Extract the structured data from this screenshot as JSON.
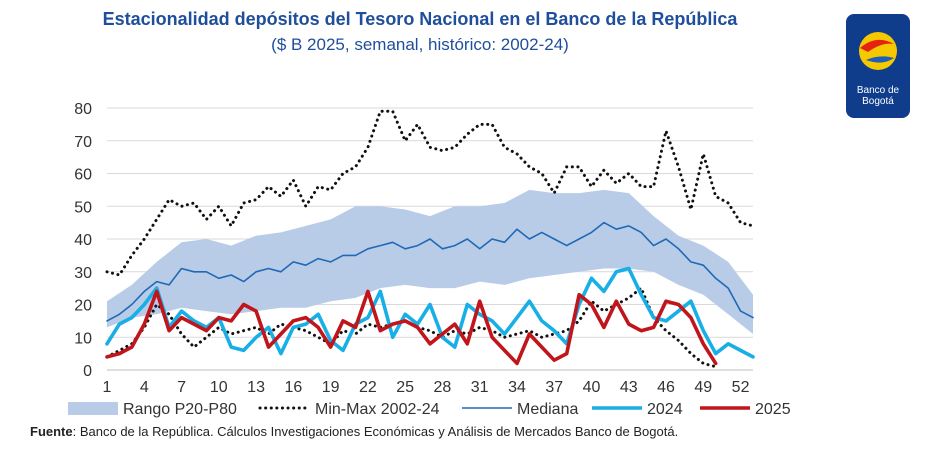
{
  "header": {
    "title": "Estacionalidad depósitos del Tesoro Nacional en el Banco de la República",
    "subtitle": "($ B 2025, semanal, histórico: 2002-24)"
  },
  "logo": {
    "text": "Banco de Bogotá",
    "colors": {
      "bg": "#0f3d8c",
      "yellow": "#f5c800",
      "red": "#e42313"
    }
  },
  "footer": {
    "source_label": "Fuente",
    "source_text": ": Banco de la República. Cálculos Investigaciones Económicas y Análisis de Mercados Banco de Bogotá."
  },
  "chart_data": {
    "type": "line",
    "title": "Estacionalidad depósitos del Tesoro Nacional en el Banco de la República",
    "subtitle": "($ B 2025, semanal, histórico: 2002-24)",
    "ylim": [
      0,
      80
    ],
    "yticks": [
      0,
      10,
      20,
      30,
      40,
      50,
      60,
      70,
      80
    ],
    "xlim": [
      1,
      53
    ],
    "xticks": [
      1,
      4,
      7,
      10,
      13,
      16,
      19,
      22,
      25,
      28,
      31,
      34,
      37,
      40,
      43,
      46,
      49,
      52
    ],
    "grid": "horizontal",
    "legend_position": "bottom",
    "series": [
      {
        "name": "Rango P20-P80",
        "kind": "band",
        "color": "#b8cce8",
        "x": [
          1,
          3,
          5,
          7,
          9,
          11,
          13,
          15,
          17,
          19,
          21,
          23,
          25,
          27,
          29,
          31,
          33,
          35,
          37,
          39,
          41,
          43,
          45,
          47,
          49,
          51,
          53
        ],
        "low": [
          13,
          16,
          17,
          19,
          18,
          17,
          18,
          19,
          19,
          21,
          22,
          25,
          26,
          25,
          25,
          27,
          26,
          28,
          29,
          30,
          31,
          31,
          30,
          26,
          23,
          17,
          11
        ],
        "high": [
          21,
          26,
          33,
          39,
          40,
          38,
          41,
          42,
          44,
          46,
          50,
          50,
          49,
          47,
          50,
          50,
          51,
          55,
          54,
          54,
          55,
          54,
          47,
          41,
          38,
          33,
          23
        ]
      },
      {
        "name": "Min-Max 2002-24",
        "kind": "dots",
        "color": "#111111",
        "segments": [
          {
            "x": [
              1,
              2,
              3,
              4,
              5,
              6,
              7,
              8,
              9,
              10,
              11,
              12,
              13,
              14,
              15,
              16,
              17,
              18,
              19,
              20,
              21,
              22,
              23,
              24,
              25,
              26,
              27,
              28,
              29,
              30,
              31,
              32,
              33,
              34,
              35,
              36,
              37,
              38,
              39,
              40,
              41,
              42,
              43,
              44,
              45,
              46,
              47,
              48,
              49,
              50,
              51,
              52,
              53
            ],
            "y": [
              30,
              29,
              35,
              40,
              46,
              52,
              50,
              51,
              46,
              50,
              44,
              51,
              52,
              56,
              53,
              58,
              50,
              56,
              55,
              60,
              62,
              68,
              79,
              79,
              70,
              75,
              68,
              67,
              68,
              72,
              75,
              75,
              68,
              66,
              62,
              60,
              54,
              62,
              62,
              56,
              61,
              57,
              60,
              56,
              56,
              73,
              62,
              49,
              66,
              53,
              51,
              45,
              44
            ]
          },
          {
            "x": [
              1,
              2,
              3,
              4,
              5,
              6,
              7,
              8,
              9,
              10,
              11,
              12,
              13,
              14,
              15,
              16,
              17,
              18,
              19,
              20,
              21,
              22,
              23,
              24,
              25,
              26,
              27,
              28,
              29,
              30,
              31,
              32,
              33,
              34,
              35,
              36,
              37,
              38,
              39,
              40,
              41,
              42,
              43,
              44,
              45,
              46,
              47,
              48,
              49,
              50
            ],
            "y": [
              4,
              6,
              8,
              13,
              20,
              17,
              11,
              7,
              10,
              13,
              11,
              12,
              13,
              11,
              14,
              13,
              12,
              10,
              8,
              12,
              11,
              14,
              13,
              14,
              15,
              13,
              12,
              10,
              12,
              11,
              13,
              12,
              10,
              11,
              12,
              10,
              11,
              12,
              15,
              21,
              18,
              20,
              22,
              25,
              16,
              12,
              9,
              5,
              2,
              1
            ]
          }
        ]
      },
      {
        "name": "Mediana",
        "kind": "line",
        "color": "#2069b6",
        "x": [
          1,
          2,
          3,
          4,
          5,
          6,
          7,
          8,
          9,
          10,
          11,
          12,
          13,
          14,
          15,
          16,
          17,
          18,
          19,
          20,
          21,
          22,
          23,
          24,
          25,
          26,
          27,
          28,
          29,
          30,
          31,
          32,
          33,
          34,
          35,
          36,
          37,
          38,
          39,
          40,
          41,
          42,
          43,
          44,
          45,
          46,
          47,
          48,
          49,
          50,
          51,
          52,
          53
        ],
        "y": [
          15,
          17,
          20,
          24,
          27,
          26,
          31,
          30,
          30,
          28,
          29,
          27,
          30,
          31,
          30,
          33,
          32,
          34,
          33,
          35,
          35,
          37,
          38,
          39,
          37,
          38,
          40,
          37,
          38,
          40,
          37,
          40,
          39,
          43,
          40,
          42,
          40,
          38,
          40,
          42,
          45,
          43,
          44,
          42,
          38,
          40,
          37,
          33,
          32,
          28,
          25,
          18,
          16
        ]
      },
      {
        "name": "2024",
        "kind": "line",
        "color": "#18aee6",
        "x": [
          1,
          2,
          3,
          4,
          5,
          6,
          7,
          8,
          9,
          10,
          11,
          12,
          13,
          14,
          15,
          16,
          17,
          18,
          19,
          20,
          21,
          22,
          23,
          24,
          25,
          26,
          27,
          28,
          29,
          30,
          31,
          32,
          33,
          34,
          35,
          36,
          37,
          38,
          39,
          40,
          41,
          42,
          43,
          44,
          45,
          46,
          47,
          48,
          49,
          50,
          51,
          52,
          53
        ],
        "y": [
          8,
          14,
          16,
          20,
          25,
          13,
          18,
          15,
          13,
          16,
          7,
          6,
          10,
          13,
          5,
          13,
          14,
          17,
          9,
          6,
          14,
          16,
          24,
          10,
          17,
          14,
          20,
          10,
          7,
          20,
          17,
          15,
          11,
          16,
          21,
          15,
          12,
          8,
          20,
          28,
          24,
          30,
          31,
          23,
          16,
          15,
          18,
          21,
          12,
          5,
          8,
          6,
          4
        ]
      },
      {
        "name": "2025",
        "kind": "line",
        "color": "#c0151b",
        "x": [
          1,
          2,
          3,
          4,
          5,
          6,
          7,
          8,
          9,
          10,
          11,
          12,
          13,
          14,
          15,
          16,
          17,
          18,
          19,
          20,
          21,
          22,
          23,
          24,
          25,
          26,
          27,
          28,
          29,
          30,
          31,
          32,
          33,
          34,
          35,
          36,
          37,
          38,
          39,
          40,
          41,
          42,
          43,
          44,
          45,
          46,
          47,
          48,
          49,
          50
        ],
        "y": [
          4,
          5,
          7,
          14,
          24,
          12,
          16,
          14,
          12,
          16,
          15,
          20,
          18,
          7,
          11,
          15,
          16,
          13,
          7,
          15,
          13,
          24,
          12,
          14,
          15,
          13,
          8,
          11,
          14,
          8,
          21,
          10,
          6,
          2,
          11,
          7,
          3,
          5,
          23,
          20,
          13,
          21,
          14,
          12,
          13,
          21,
          20,
          16,
          8,
          2
        ]
      }
    ]
  }
}
